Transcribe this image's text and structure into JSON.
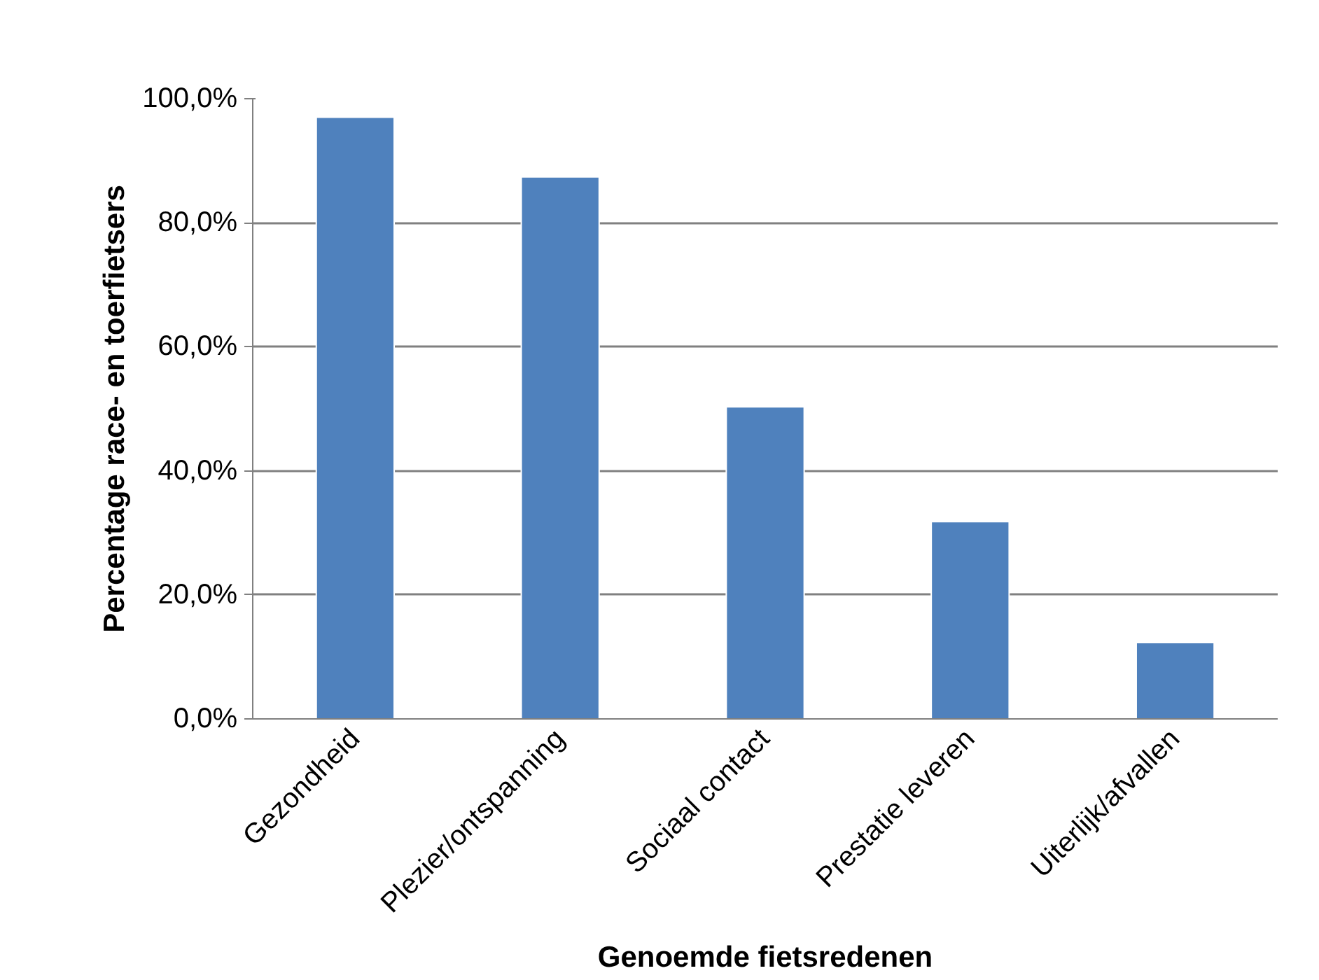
{
  "chart_data": {
    "type": "bar",
    "xlabel": "Genoemde fietsredenen",
    "ylabel": "Percentage race- en toerfietsers",
    "categories": [
      "Gezondheid",
      "Plezier/ontspanning",
      "Sociaal contact",
      "Prestatie leveren",
      "Uiterlijk/afvallen"
    ],
    "values": [
      97.0,
      87.4,
      50.3,
      31.8,
      12.3
    ],
    "color": "#4f81bd",
    "ylim": [
      0,
      100
    ],
    "yticks": [
      {
        "value": 0,
        "label": "0,0%"
      },
      {
        "value": 20,
        "label": "20,0%"
      },
      {
        "value": 40,
        "label": "40,0%"
      },
      {
        "value": 60,
        "label": "60,0%"
      },
      {
        "value": 80,
        "label": "80,0%"
      },
      {
        "value": 100,
        "label": "100,0%"
      }
    ],
    "grid": "y"
  }
}
